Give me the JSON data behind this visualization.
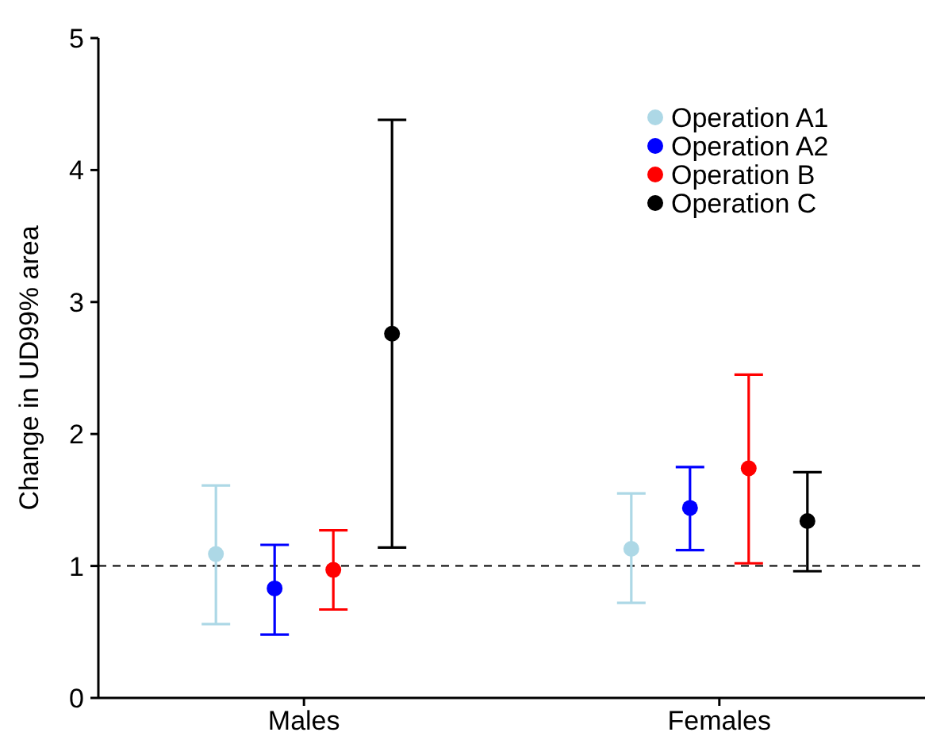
{
  "chart_data": {
    "type": "scatter",
    "ylabel": "Change in UD99% area",
    "categories": [
      "Males",
      "Females"
    ],
    "ylim": [
      0,
      5
    ],
    "yticks": [
      0,
      1,
      2,
      3,
      4,
      5
    ],
    "grid": false,
    "legend": "top right",
    "marker": "circle",
    "series": [
      {
        "name": "Operation A1",
        "color": "#add8e6",
        "values": [
          1.09,
          1.13
        ],
        "errors": [
          [
            0.56,
            1.61
          ],
          [
            0.72,
            1.55
          ]
        ]
      },
      {
        "name": "Operation A2",
        "color": "#0000ff",
        "values": [
          0.83,
          1.44
        ],
        "errors": [
          [
            0.48,
            1.16
          ],
          [
            1.12,
            1.75
          ]
        ]
      },
      {
        "name": "Operation B",
        "color": "#ff0000",
        "values": [
          0.97,
          1.74
        ],
        "errors": [
          [
            0.67,
            1.27
          ],
          [
            1.02,
            2.45
          ]
        ]
      },
      {
        "name": "Operation C",
        "color": "#000000",
        "values": [
          2.76,
          1.34
        ],
        "errors": [
          [
            1.14,
            4.38
          ],
          [
            0.96,
            1.71
          ]
        ]
      }
    ],
    "ref_lines": [
      {
        "axis": "y",
        "value": 1,
        "line_style": "dashed",
        "color": "#000000"
      }
    ]
  }
}
